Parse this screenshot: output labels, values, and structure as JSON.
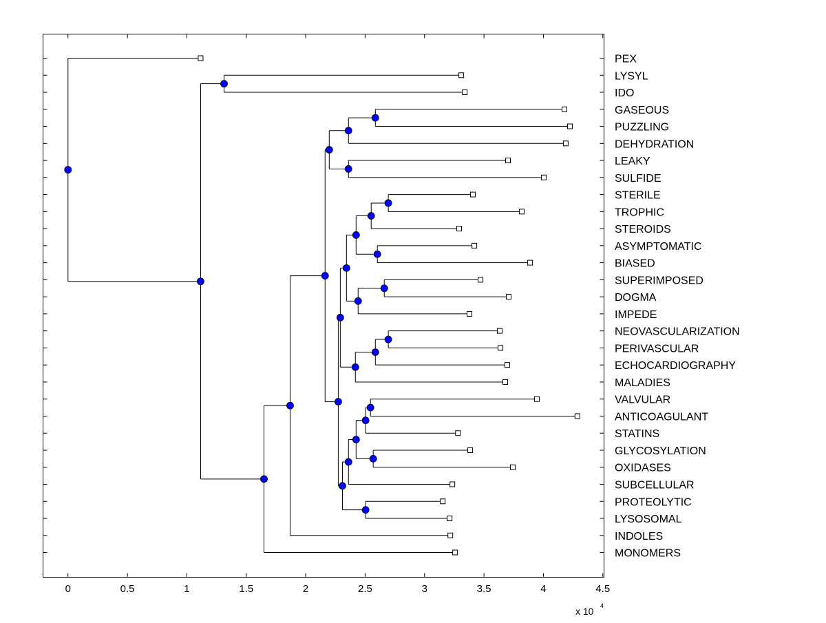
{
  "chart_data": {
    "type": "dendrogram",
    "xlabel": "",
    "ylabel": "",
    "x_exponent_label": "x 10",
    "x_exponent": "4",
    "xlim": [
      -0.21,
      4.51
    ],
    "xticks": [
      "0",
      "0.5",
      "1",
      "1.5",
      "2",
      "2.5",
      "3",
      "3.5",
      "4",
      "4.5"
    ],
    "grid": false,
    "colors": {
      "branch_node": "#0000ff",
      "leaf_node": "#ffffff",
      "line": "#000000"
    },
    "tree": {
      "x": 0,
      "children": [
        {
          "label": "PEX",
          "x": 1.116
        },
        {
          "x": 1.116,
          "children": [
            {
              "x": 1.313,
              "children": [
                {
                  "label": "LYSYL",
                  "x": 3.309
                },
                {
                  "label": "IDO",
                  "x": 3.338
                }
              ]
            },
            {
              "x": 1.649,
              "children": [
                {
                  "x": 1.869,
                  "children": [
                    {
                      "x": 2.163,
                      "children": [
                        {
                          "x": 2.198,
                          "children": [
                            {
                              "x": 2.36,
                              "children": [
                                {
                                  "x": 2.586,
                                  "children": [
                                    {
                                      "label": "GASEOUS",
                                      "x": 4.177
                                    },
                                    {
                                      "label": "PUZZLING",
                                      "x": 4.223
                                    }
                                  ]
                                },
                                {
                                  "label": "DEHYDRATION",
                                  "x": 4.188
                                }
                              ]
                            },
                            {
                              "x": 2.36,
                              "children": [
                                {
                                  "label": "LEAKY",
                                  "x": 3.702
                                },
                                {
                                  "label": "SULFIDE",
                                  "x": 4.003
                                }
                              ]
                            }
                          ]
                        },
                        {
                          "x": 2.274,
                          "children": [
                            {
                              "x": 2.291,
                              "children": [
                                {
                                  "x": 2.343,
                                  "children": [
                                    {
                                      "x": 2.424,
                                      "children": [
                                        {
                                          "x": 2.551,
                                          "children": [
                                            {
                                              "x": 2.695,
                                              "children": [
                                                {
                                                  "label": "STERILE",
                                                  "x": 3.407
                                                },
                                                {
                                                  "label": "TROPHIC",
                                                  "x": 3.818
                                                }
                                              ]
                                            },
                                            {
                                              "label": "STEROIDS",
                                              "x": 3.291
                                            }
                                          ]
                                        },
                                        {
                                          "x": 2.603,
                                          "children": [
                                            {
                                              "label": "ASYMPTOMATIC",
                                              "x": 3.419
                                            },
                                            {
                                              "label": "BIASED",
                                              "x": 3.888
                                            }
                                          ]
                                        }
                                      ]
                                    },
                                    {
                                      "x": 2.441,
                                      "children": [
                                        {
                                          "x": 2.661,
                                          "children": [
                                            {
                                              "label": "SUPERIMPOSED",
                                              "x": 3.471
                                            },
                                            {
                                              "label": "DOGMA",
                                              "x": 3.708
                                            }
                                          ]
                                        },
                                        {
                                          "label": "IMPEDE",
                                          "x": 3.378
                                        }
                                      ]
                                    }
                                  ]
                                },
                                {
                                  "x": 2.418,
                                  "children": [
                                    {
                                      "x": 2.586,
                                      "children": [
                                        {
                                          "x": 2.695,
                                          "children": [
                                            {
                                              "label": "NEOVASCULARIZATION",
                                              "x": 3.633
                                            },
                                            {
                                              "label": "PERIVASCULAR",
                                              "x": 3.639
                                            }
                                          ]
                                        },
                                        {
                                          "label": "ECHOCARDIOGRAPHY",
                                          "x": 3.696
                                        }
                                      ]
                                    },
                                    {
                                      "label": "MALADIES",
                                      "x": 3.679
                                    }
                                  ]
                                }
                              ]
                            },
                            {
                              "x": 2.309,
                              "children": [
                                {
                                  "x": 2.36,
                                  "children": [
                                    {
                                      "x": 2.424,
                                      "children": [
                                        {
                                          "x": 2.504,
                                          "children": [
                                            {
                                              "x": 2.545,
                                              "children": [
                                                {
                                                  "label": "VALVULAR",
                                                  "x": 3.945
                                                },
                                                {
                                                  "label": "ANTICOAGULANT",
                                                  "x": 4.286
                                                }
                                              ]
                                            },
                                            {
                                              "label": "STATINS",
                                              "x": 3.281
                                            }
                                          ]
                                        },
                                        {
                                          "x": 2.568,
                                          "children": [
                                            {
                                              "label": "GLYCOSYLATION",
                                              "x": 3.384
                                            },
                                            {
                                              "label": "OXIDASES",
                                              "x": 3.743
                                            }
                                          ]
                                        }
                                      ]
                                    },
                                    {
                                      "label": "SUBCELLULAR",
                                      "x": 3.234
                                    }
                                  ]
                                },
                                {
                                  "x": 2.504,
                                  "children": [
                                    {
                                      "label": "PROTEOLYTIC",
                                      "x": 3.153
                                    },
                                    {
                                      "label": "LYSOSOMAL",
                                      "x": 3.211
                                    }
                                  ]
                                }
                              ]
                            }
                          ]
                        }
                      ]
                    },
                    {
                      "label": "INDOLES",
                      "x": 3.217
                    }
                  ]
                },
                {
                  "label": "MONOMERS",
                  "x": 3.257
                }
              ]
            }
          ]
        }
      ]
    }
  }
}
